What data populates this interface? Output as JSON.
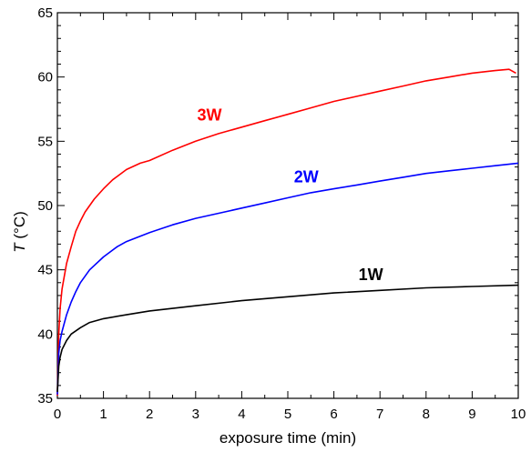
{
  "chart_data": {
    "type": "line",
    "title": "",
    "xlabel": "exposure time  (min)",
    "ylabel_italic": "T",
    "ylabel_unit": " (°C)",
    "xlim": [
      0,
      10
    ],
    "ylim": [
      35,
      65
    ],
    "x_ticks": [
      0,
      1,
      2,
      3,
      4,
      5,
      6,
      7,
      8,
      9,
      10
    ],
    "y_ticks": [
      35,
      40,
      45,
      50,
      55,
      60,
      65
    ],
    "grid": false,
    "legend": "none",
    "series": [
      {
        "name": "3W",
        "color": "#ff0000",
        "label_at": [
          3.3,
          56.6
        ],
        "points": [
          [
            0,
            35.2
          ],
          [
            0.03,
            40.0
          ],
          [
            0.06,
            42.0
          ],
          [
            0.1,
            43.5
          ],
          [
            0.15,
            44.5
          ],
          [
            0.2,
            45.5
          ],
          [
            0.3,
            46.8
          ],
          [
            0.4,
            48.0
          ],
          [
            0.5,
            48.8
          ],
          [
            0.6,
            49.5
          ],
          [
            0.8,
            50.5
          ],
          [
            1.0,
            51.3
          ],
          [
            1.2,
            52.0
          ],
          [
            1.5,
            52.8
          ],
          [
            1.8,
            53.3
          ],
          [
            2.0,
            53.5
          ],
          [
            2.5,
            54.3
          ],
          [
            3.0,
            55.0
          ],
          [
            3.5,
            55.6
          ],
          [
            4.0,
            56.1
          ],
          [
            4.5,
            56.6
          ],
          [
            5.0,
            57.1
          ],
          [
            5.5,
            57.6
          ],
          [
            6.0,
            58.1
          ],
          [
            6.5,
            58.5
          ],
          [
            7.0,
            58.9
          ],
          [
            7.5,
            59.3
          ],
          [
            8.0,
            59.7
          ],
          [
            8.5,
            60.0
          ],
          [
            9.0,
            60.3
          ],
          [
            9.5,
            60.5
          ],
          [
            9.8,
            60.6
          ],
          [
            9.95,
            60.3
          ]
        ]
      },
      {
        "name": "2W",
        "color": "#0000ff",
        "label_at": [
          5.4,
          51.8
        ],
        "points": [
          [
            0,
            35.3
          ],
          [
            0.03,
            38.5
          ],
          [
            0.06,
            39.5
          ],
          [
            0.1,
            40.2
          ],
          [
            0.2,
            41.5
          ],
          [
            0.3,
            42.5
          ],
          [
            0.4,
            43.3
          ],
          [
            0.5,
            44.0
          ],
          [
            0.7,
            45.0
          ],
          [
            1.0,
            46.0
          ],
          [
            1.3,
            46.8
          ],
          [
            1.5,
            47.2
          ],
          [
            2.0,
            47.9
          ],
          [
            2.5,
            48.5
          ],
          [
            3.0,
            49.0
          ],
          [
            3.5,
            49.4
          ],
          [
            4.0,
            49.8
          ],
          [
            4.5,
            50.2
          ],
          [
            5.0,
            50.6
          ],
          [
            5.5,
            51.0
          ],
          [
            6.0,
            51.3
          ],
          [
            6.5,
            51.6
          ],
          [
            7.0,
            51.9
          ],
          [
            7.5,
            52.2
          ],
          [
            8.0,
            52.5
          ],
          [
            8.5,
            52.7
          ],
          [
            9.0,
            52.9
          ],
          [
            9.5,
            53.1
          ],
          [
            10.0,
            53.3
          ]
        ]
      },
      {
        "name": "1W",
        "color": "#000000",
        "label_at": [
          6.8,
          44.2
        ],
        "points": [
          [
            0,
            35.5
          ],
          [
            0.03,
            37.5
          ],
          [
            0.06,
            38.2
          ],
          [
            0.1,
            38.8
          ],
          [
            0.2,
            39.5
          ],
          [
            0.3,
            40.0
          ],
          [
            0.5,
            40.5
          ],
          [
            0.7,
            40.9
          ],
          [
            1.0,
            41.2
          ],
          [
            1.5,
            41.5
          ],
          [
            2.0,
            41.8
          ],
          [
            2.5,
            42.0
          ],
          [
            3.0,
            42.2
          ],
          [
            4.0,
            42.6
          ],
          [
            5.0,
            42.9
          ],
          [
            6.0,
            43.2
          ],
          [
            7.0,
            43.4
          ],
          [
            8.0,
            43.6
          ],
          [
            9.0,
            43.7
          ],
          [
            10.0,
            43.8
          ]
        ]
      }
    ]
  }
}
